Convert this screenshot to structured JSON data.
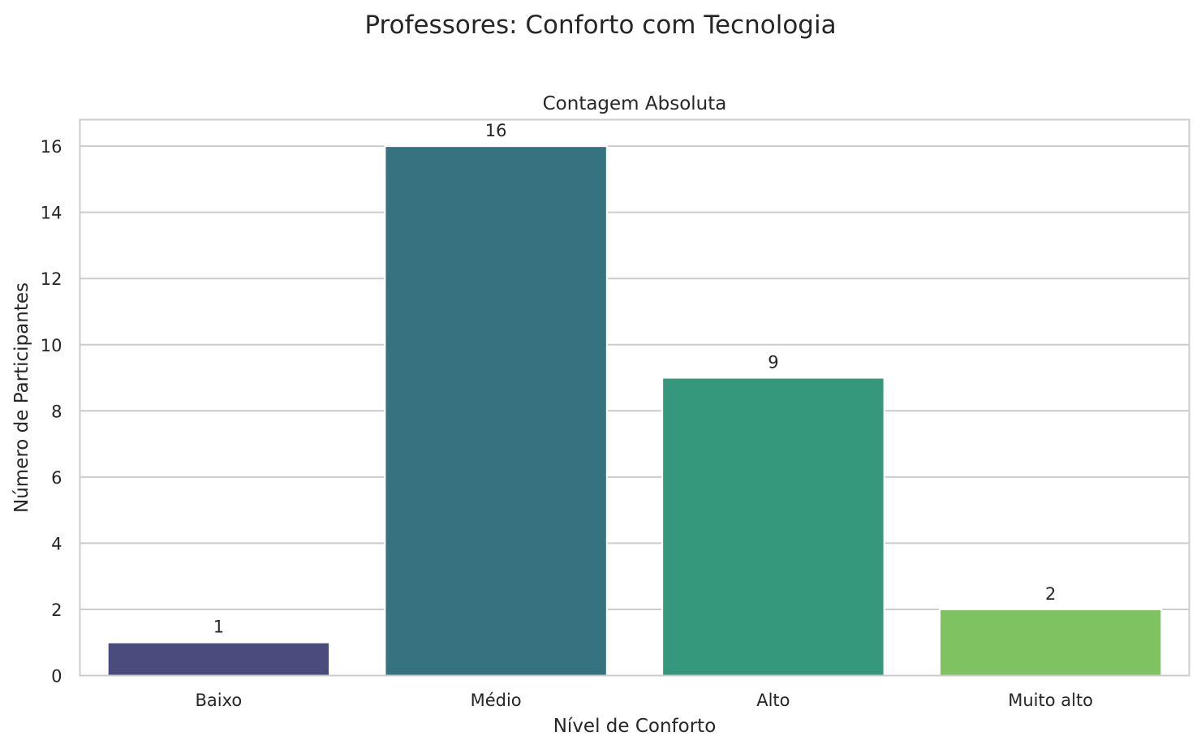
{
  "chart_data": {
    "type": "bar",
    "suptitle": "Professores: Conforto com Tecnologia",
    "title": "Contagem Absoluta",
    "xlabel": "Nível de Conforto",
    "ylabel": "Número de Participantes",
    "categories": [
      "Baixo",
      "Médio",
      "Alto",
      "Muito alto"
    ],
    "values": [
      1,
      16,
      9,
      2
    ],
    "data_labels": [
      "1",
      "16",
      "9",
      "2"
    ],
    "colors": [
      "#4a4c7e",
      "#367381",
      "#35987c",
      "#7fc261"
    ],
    "ylim": [
      0,
      16.8
    ],
    "yticks": [
      0,
      2,
      4,
      6,
      8,
      10,
      12,
      14,
      16
    ],
    "ytick_labels": [
      "0",
      "2",
      "4",
      "6",
      "8",
      "10",
      "12",
      "14",
      "16"
    ],
    "grid": true,
    "legend": "none"
  }
}
